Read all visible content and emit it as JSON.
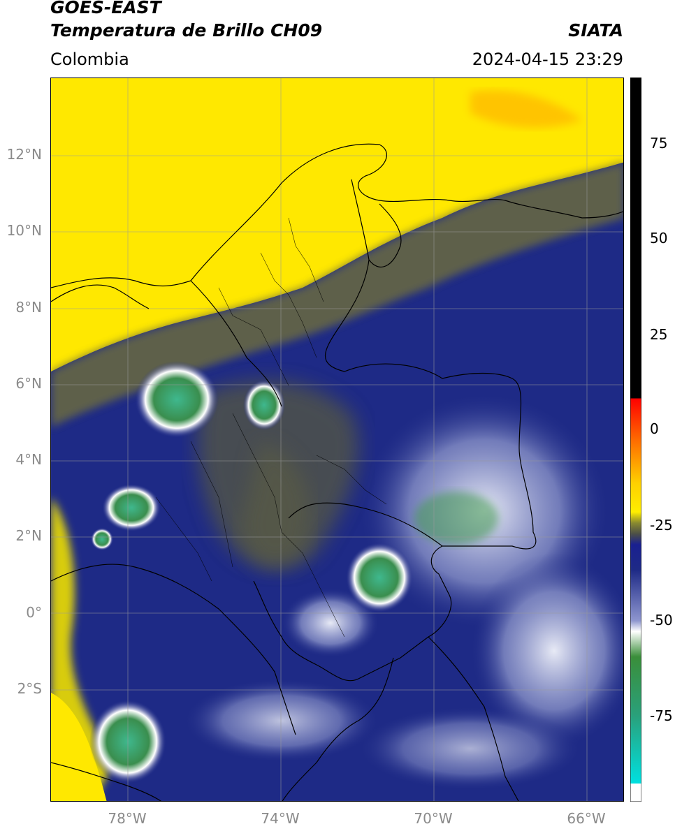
{
  "header": {
    "title_line1": "GOES-EAST",
    "title_line2": "Temperatura de Brillo CH09",
    "source": "SIATA",
    "region": "Colombia",
    "datetime": "2024-04-15 23:29"
  },
  "axes": {
    "lat_labels": [
      "12°N",
      "10°N",
      "8°N",
      "6°N",
      "4°N",
      "2°N",
      "0°",
      "2°S"
    ],
    "lon_labels": [
      "78°W",
      "74°W",
      "70°W",
      "66°W"
    ]
  },
  "colorbar": {
    "tick_labels": [
      "75",
      "50",
      "25",
      "0",
      "-25",
      "-50",
      "-75"
    ]
  },
  "colors": {
    "warm": "#ffee00",
    "mid": "#1f2a8a",
    "gray": "#4d5046",
    "cold": "#e8ecf8",
    "coldest": "#3f9a5a"
  }
}
